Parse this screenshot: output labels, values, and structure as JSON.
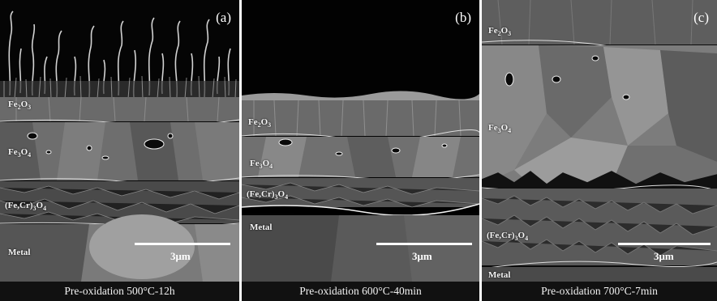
{
  "panels": [
    {
      "letter": "(a)",
      "caption": "Pre-oxidation 500°C-12h",
      "layers": {
        "hematite": "Fe2O3",
        "magnetite": "Fe3O4",
        "spinel": "(Fe,Cr)3O4",
        "metal": "Metal"
      },
      "scale": "3μm"
    },
    {
      "letter": "(b)",
      "caption": "Pre-oxidation 600°C-40min",
      "layers": {
        "hematite": "Fe2O3",
        "magnetite": "Fe3O4",
        "spinel": "(Fe,Cr)3O4",
        "metal": "Metal"
      },
      "scale": "3μm"
    },
    {
      "letter": "(c)",
      "caption": "Pre-oxidation 700°C-7min",
      "layers": {
        "hematite": "Fe2O3",
        "magnetite": "Fe3O4",
        "spinel": "(Fe,Cr)3O4",
        "metal": "Metal"
      },
      "scale": "3μm"
    }
  ]
}
